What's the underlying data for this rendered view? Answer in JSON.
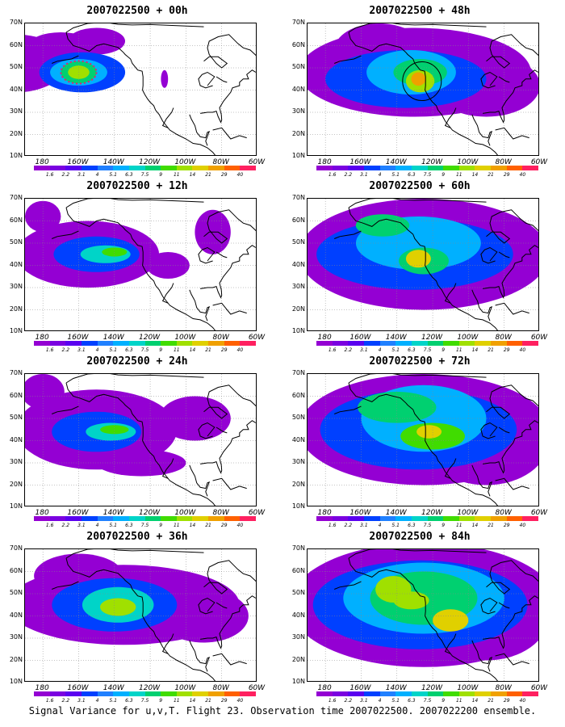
{
  "chart_data": {
    "type": "heatmap",
    "caption": "Signal Variance for u,v,T. Flight 23. Observation time 2007022500. 2007022200 ensemble.",
    "x_tick_labels": [
      "180",
      "160W",
      "140W",
      "120W",
      "100W",
      "80W",
      "60W"
    ],
    "y_tick_labels": [
      "70N",
      "60N",
      "50N",
      "40N",
      "30N",
      "20N",
      "10N"
    ],
    "lon_range": [
      170,
      300
    ],
    "lat_range": [
      10,
      70
    ],
    "grid": true,
    "colorbar": {
      "labels": [
        "1.6",
        "2.2",
        "3.1",
        "4",
        "5.1",
        "6.3",
        "7.5",
        "9",
        "11",
        "14",
        "21",
        "29",
        "40"
      ],
      "colors": [
        "#9400d3",
        "#7a00e0",
        "#5a00f0",
        "#0040ff",
        "#2080ff",
        "#00b0ff",
        "#00d4c8",
        "#00d070",
        "#40dc00",
        "#a0e000",
        "#e0d000",
        "#f0a000",
        "#ff6000",
        "#ff2060"
      ]
    },
    "panels": [
      {
        "title": "2007022500 + 00h",
        "lead_hours": 0,
        "max_level": "14",
        "features": [
          "maximum centered near 48N 160W",
          "dotted red circle marking observation target"
        ]
      },
      {
        "title": "2007022500 + 12h",
        "lead_hours": 12,
        "max_level": "14"
      },
      {
        "title": "2007022500 + 24h",
        "lead_hours": 24,
        "max_level": "14"
      },
      {
        "title": "2007022500 + 36h",
        "lead_hours": 36,
        "max_level": "21"
      },
      {
        "title": "2007022500 + 48h",
        "lead_hours": 48,
        "max_level": "21",
        "features": [
          "black circle outlining verification region near 45N 125W"
        ]
      },
      {
        "title": "2007022500 + 60h",
        "lead_hours": 60,
        "max_level": "21"
      },
      {
        "title": "2007022500 + 72h",
        "lead_hours": 72,
        "max_level": "14"
      },
      {
        "title": "2007022500 + 84h",
        "lead_hours": 84,
        "max_level": "21"
      }
    ]
  }
}
